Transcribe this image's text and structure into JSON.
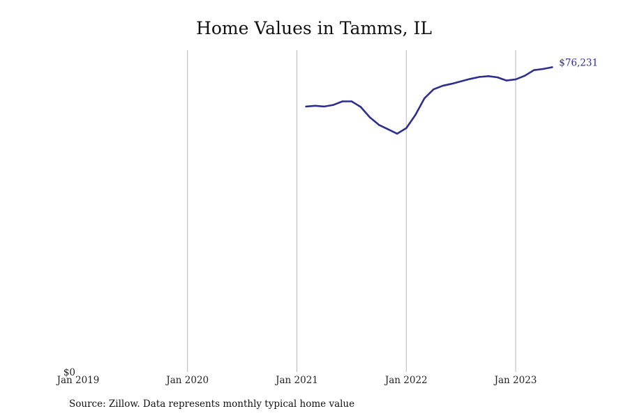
{
  "chart_data": {
    "type": "line",
    "title": "Home Values in Tamms, IL",
    "xlabel": "",
    "ylabel": "",
    "x_ticks": [
      "Jan 2019",
      "Jan 2020",
      "Jan 2021",
      "Jan 2022",
      "Jan 2023"
    ],
    "y_ticks": [
      {
        "value": 0,
        "label": "$0"
      }
    ],
    "ylim": [
      0,
      80500
    ],
    "xlim": [
      "2019-01",
      "2023-11"
    ],
    "grid": "vertical",
    "line_color": "#2e2e8f",
    "series": [
      {
        "end_label": "$76,231",
        "points": [
          {
            "x": "2021-02",
            "y": 66400
          },
          {
            "x": "2021-03",
            "y": 66600
          },
          {
            "x": "2021-04",
            "y": 66400
          },
          {
            "x": "2021-05",
            "y": 66800
          },
          {
            "x": "2021-06",
            "y": 67700
          },
          {
            "x": "2021-07",
            "y": 67700
          },
          {
            "x": "2021-08",
            "y": 66300
          },
          {
            "x": "2021-09",
            "y": 63700
          },
          {
            "x": "2021-10",
            "y": 61800
          },
          {
            "x": "2021-11",
            "y": 60700
          },
          {
            "x": "2021-12",
            "y": 59600
          },
          {
            "x": "2022-01",
            "y": 61000
          },
          {
            "x": "2022-02",
            "y": 64300
          },
          {
            "x": "2022-03",
            "y": 68500
          },
          {
            "x": "2022-04",
            "y": 70700
          },
          {
            "x": "2022-05",
            "y": 71600
          },
          {
            "x": "2022-06",
            "y": 72100
          },
          {
            "x": "2022-07",
            "y": 72700
          },
          {
            "x": "2022-08",
            "y": 73300
          },
          {
            "x": "2022-09",
            "y": 73800
          },
          {
            "x": "2022-10",
            "y": 74000
          },
          {
            "x": "2022-11",
            "y": 73700
          },
          {
            "x": "2022-12",
            "y": 72900
          },
          {
            "x": "2023-01",
            "y": 73200
          },
          {
            "x": "2023-02",
            "y": 74100
          },
          {
            "x": "2023-03",
            "y": 75500
          },
          {
            "x": "2023-04",
            "y": 75800
          },
          {
            "x": "2023-05",
            "y": 76231
          }
        ]
      }
    ]
  },
  "footer": {
    "source": "Source: Zillow. Data represents monthly typical home value"
  }
}
